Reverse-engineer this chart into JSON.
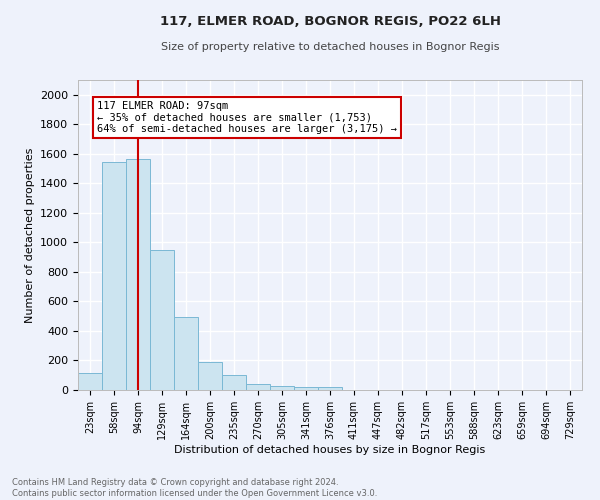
{
  "title": "117, ELMER ROAD, BOGNOR REGIS, PO22 6LH",
  "subtitle": "Size of property relative to detached houses in Bognor Regis",
  "xlabel": "Distribution of detached houses by size in Bognor Regis",
  "ylabel": "Number of detached properties",
  "bin_labels": [
    "23sqm",
    "58sqm",
    "94sqm",
    "129sqm",
    "164sqm",
    "200sqm",
    "235sqm",
    "270sqm",
    "305sqm",
    "341sqm",
    "376sqm",
    "411sqm",
    "447sqm",
    "482sqm",
    "517sqm",
    "553sqm",
    "588sqm",
    "623sqm",
    "659sqm",
    "694sqm",
    "729sqm"
  ],
  "bar_heights": [
    113,
    1543,
    1568,
    950,
    493,
    188,
    103,
    40,
    28,
    18,
    18,
    0,
    0,
    0,
    0,
    0,
    0,
    0,
    0,
    0,
    0
  ],
  "bar_color": "#cce4f0",
  "bar_edge_color": "#7ab8d4",
  "n_bins": 21,
  "property_line_x": 2.0,
  "vline_label": "117 ELMER ROAD: 97sqm",
  "annotation_line1": "← 35% of detached houses are smaller (1,753)",
  "annotation_line2": "64% of semi-detached houses are larger (3,175) →",
  "annotation_box_color": "#ffffff",
  "annotation_box_edge": "#cc0000",
  "vline_color": "#cc0000",
  "ylim": [
    0,
    2100
  ],
  "yticks": [
    0,
    200,
    400,
    600,
    800,
    1000,
    1200,
    1400,
    1600,
    1800,
    2000
  ],
  "footer_line1": "Contains HM Land Registry data © Crown copyright and database right 2024.",
  "footer_line2": "Contains public sector information licensed under the Open Government Licence v3.0.",
  "bg_color": "#eef2fb",
  "grid_color": "#ffffff",
  "title_color": "#222222",
  "subtitle_color": "#444444",
  "footer_color": "#666666"
}
